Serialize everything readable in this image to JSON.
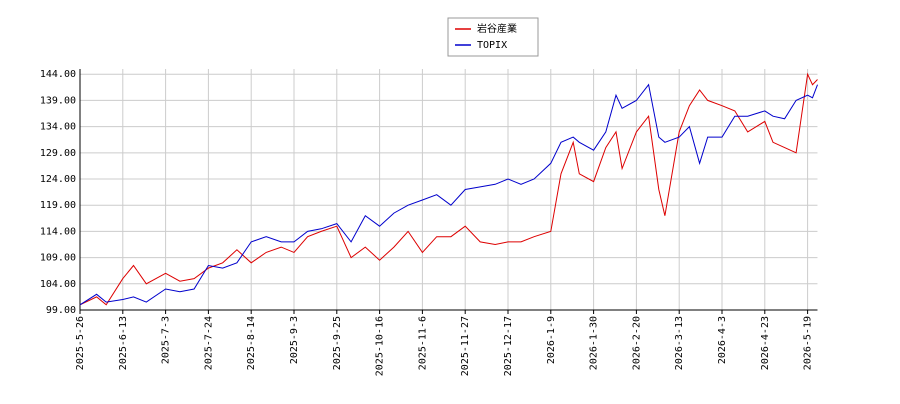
{
  "chart_data": {
    "type": "line",
    "x": [
      "2025-5-26",
      "2025-6-2",
      "2025-6-6",
      "2025-6-13",
      "2025-6-18",
      "2025-6-24",
      "2025-7-3",
      "2025-7-10",
      "2025-7-17",
      "2025-7-24",
      "2025-7-31",
      "2025-8-7",
      "2025-8-14",
      "2025-8-21",
      "2025-8-28",
      "2025-9-3",
      "2025-9-10",
      "2025-9-17",
      "2025-9-25",
      "2025-10-2",
      "2025-10-9",
      "2025-10-16",
      "2025-10-23",
      "2025-10-30",
      "2025-11-6",
      "2025-11-13",
      "2025-11-20",
      "2025-11-27",
      "2025-12-4",
      "2025-12-11",
      "2025-12-17",
      "2025-12-24",
      "2025-12-31",
      "2026-1-9",
      "2026-1-14",
      "2026-1-20",
      "2026-1-23",
      "2026-1-30",
      "2026-2-5",
      "2026-2-10",
      "2026-2-13",
      "2026-2-20",
      "2026-2-26",
      "2026-3-3",
      "2026-3-6",
      "2026-3-13",
      "2026-3-18",
      "2026-3-23",
      "2026-3-27",
      "2026-4-3",
      "2026-4-9",
      "2026-4-15",
      "2026-4-23",
      "2026-4-28",
      "2026-5-5",
      "2026-5-12",
      "2026-5-19",
      "2026-5-22",
      "2026-5-25"
    ],
    "series": [
      {
        "name": "岩谷産業",
        "color": "#dd0000",
        "values": [
          100,
          101.5,
          100,
          105,
          107.5,
          104,
          106,
          104.5,
          105,
          107,
          108,
          110.5,
          108,
          110,
          111,
          110,
          113,
          114,
          115,
          109,
          111,
          108.5,
          111,
          114,
          110,
          113,
          113,
          115,
          112,
          111.5,
          112,
          112,
          113,
          114,
          125,
          131,
          125,
          123.5,
          130,
          133,
          126,
          133,
          136,
          122,
          117,
          133,
          138,
          141,
          139,
          138,
          137,
          133,
          135,
          131,
          130,
          129,
          144,
          142,
          143
        ]
      },
      {
        "name": "TOPIX",
        "color": "#0000cc",
        "values": [
          100,
          102,
          100.5,
          101,
          101.5,
          100.5,
          103,
          102.5,
          103,
          107.5,
          107,
          108,
          112,
          113,
          112,
          112,
          114,
          114.5,
          115.5,
          112,
          117,
          115,
          117.5,
          119,
          120,
          121,
          119,
          122,
          122.5,
          123,
          124,
          123,
          124,
          127,
          131,
          132,
          131,
          129.5,
          133,
          140,
          137.5,
          139,
          142,
          132,
          131,
          132,
          134,
          127,
          132,
          132,
          136,
          136,
          137,
          136,
          135.5,
          139,
          140,
          139.5,
          142
        ]
      }
    ],
    "xlim": [
      "2025-5-26",
      "2026-5-25"
    ],
    "xticks": [
      "2025-5-26",
      "2025-6-13",
      "2025-7-3",
      "2025-7-24",
      "2025-8-14",
      "2025-9-3",
      "2025-9-25",
      "2025-10-16",
      "2025-11-6",
      "2025-11-27",
      "2025-12-17",
      "2026-1-9",
      "2026-1-30",
      "2026-2-20",
      "2026-3-13",
      "2026-4-3",
      "2026-4-23",
      "2026-5-19"
    ],
    "ylim": [
      99,
      145
    ],
    "yticks": [
      {
        "value": 99,
        "label": "99.00"
      },
      {
        "value": 104,
        "label": "104.00"
      },
      {
        "value": 109,
        "label": "109.00"
      },
      {
        "value": 114,
        "label": "114.00"
      },
      {
        "value": 119,
        "label": "119.00"
      },
      {
        "value": 124,
        "label": "124.00"
      },
      {
        "value": 129,
        "label": "129.00"
      },
      {
        "value": 134,
        "label": "134.00"
      },
      {
        "value": 139,
        "label": "139.00"
      },
      {
        "value": 144,
        "label": "144.00"
      }
    ],
    "grid": true
  }
}
